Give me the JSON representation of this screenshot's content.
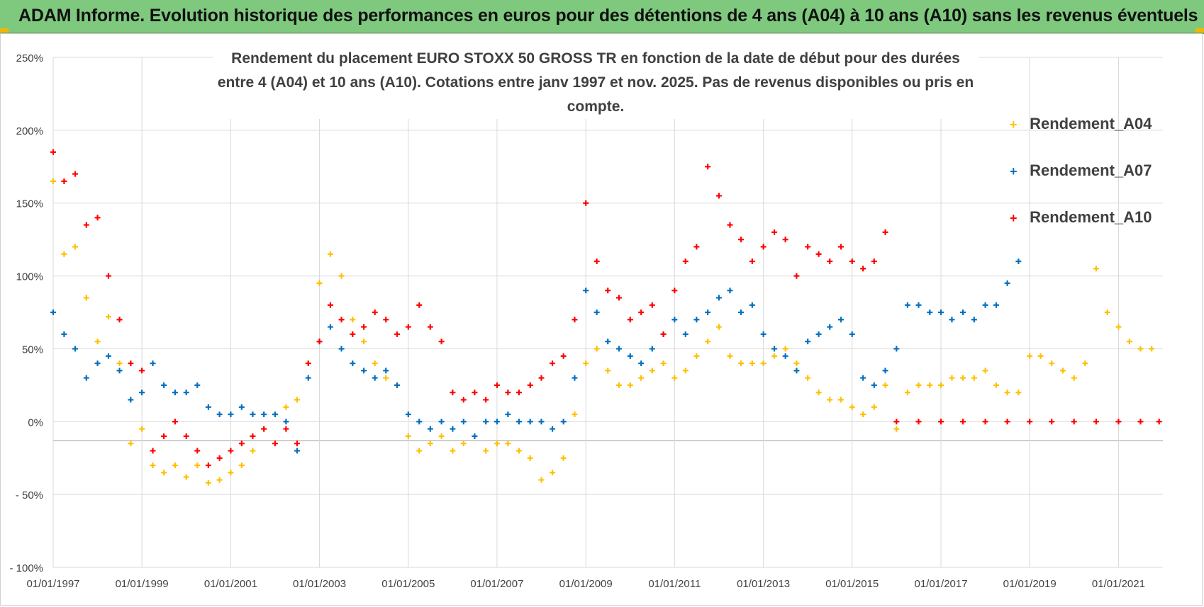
{
  "banner": {
    "title": "ADAM Informe. Evolution historique des performances en euros pour des détentions de 4 ans (A04) à 10 ans (A10) sans les revenus éventuels"
  },
  "colors": {
    "banner_bg": "#7fc97f",
    "A04": "#ffc000",
    "A07": "#0070c0",
    "A10": "#ff0000"
  },
  "chart_data": {
    "type": "scatter",
    "title_line1": "Rendement du placement EURO STOXX 50 GROSS TR en fonction de la date de début pour des durées",
    "title_line2": "entre 4 (A04) et 10 ans (A10).  Cotations entre janv 1997 et nov. 2025. Pas de revenus disponibles ou pris en compte.",
    "xlabel": "",
    "ylabel": "",
    "x_range": [
      "1997-01-01",
      "2022-01-01"
    ],
    "ylim": [
      -100,
      250
    ],
    "y_ticks": [
      250,
      200,
      150,
      100,
      50,
      0,
      -50,
      -100
    ],
    "y_tick_labels": [
      "250%",
      "200%",
      "150%",
      "100%",
      "50%",
      "0%",
      "- 50%",
      "- 100%"
    ],
    "x_tick_labels": [
      "01/01/1997",
      "01/01/1999",
      "01/01/2001",
      "01/01/2003",
      "01/01/2005",
      "01/01/2007",
      "01/01/2009",
      "01/01/2011",
      "01/01/2013",
      "01/01/2015",
      "01/01/2017",
      "01/01/2019",
      "01/01/2021"
    ],
    "grid": true,
    "legend_position": "right",
    "marker": "+",
    "series": [
      {
        "name": "Rendement_A04",
        "color": "#ffc000",
        "x": [
          "1997-01-01",
          "1997-04-01",
          "1997-07-01",
          "1997-10-01",
          "1998-01-01",
          "1998-04-01",
          "1998-07-01",
          "1998-10-01",
          "1999-01-01",
          "1999-04-01",
          "1999-07-01",
          "1999-10-01",
          "2000-01-01",
          "2000-04-01",
          "2000-07-01",
          "2000-10-01",
          "2001-01-01",
          "2001-04-01",
          "2001-07-01",
          "2001-10-01",
          "2002-01-01",
          "2002-04-01",
          "2002-07-01",
          "2002-10-01",
          "2003-01-01",
          "2003-04-01",
          "2003-07-01",
          "2003-10-01",
          "2004-01-01",
          "2004-04-01",
          "2004-07-01",
          "2004-10-01",
          "2005-01-01",
          "2005-04-01",
          "2005-07-01",
          "2005-10-01",
          "2006-01-01",
          "2006-04-01",
          "2006-07-01",
          "2006-10-01",
          "2007-01-01",
          "2007-04-01",
          "2007-07-01",
          "2007-10-01",
          "2008-01-01",
          "2008-04-01",
          "2008-07-01",
          "2008-10-01",
          "2009-01-01",
          "2009-04-01",
          "2009-07-01",
          "2009-10-01",
          "2010-01-01",
          "2010-04-01",
          "2010-07-01",
          "2010-10-01",
          "2011-01-01",
          "2011-04-01",
          "2011-07-01",
          "2011-10-01",
          "2012-01-01",
          "2012-04-01",
          "2012-07-01",
          "2012-10-01",
          "2013-01-01",
          "2013-04-01",
          "2013-07-01",
          "2013-10-01",
          "2014-01-01",
          "2014-04-01",
          "2014-07-01",
          "2014-10-01",
          "2015-01-01",
          "2015-04-01",
          "2015-07-01",
          "2015-10-01",
          "2016-01-01",
          "2016-04-01",
          "2016-07-01",
          "2016-10-01",
          "2017-01-01",
          "2017-04-01",
          "2017-07-01",
          "2017-10-01",
          "2018-01-01",
          "2018-04-01",
          "2018-07-01",
          "2018-10-01",
          "2019-01-01",
          "2019-04-01",
          "2019-07-01",
          "2019-10-01",
          "2020-01-01",
          "2020-04-01",
          "2020-07-01",
          "2020-10-01",
          "2021-01-01",
          "2021-04-01",
          "2021-07-01",
          "2021-10-01"
        ],
        "y": [
          165,
          115,
          120,
          85,
          55,
          72,
          40,
          -15,
          -5,
          -30,
          -35,
          -30,
          -38,
          -30,
          -42,
          -40,
          -35,
          -30,
          -20,
          -5,
          5,
          10,
          15,
          40,
          95,
          115,
          100,
          70,
          55,
          40,
          30,
          25,
          -10,
          -20,
          -15,
          -10,
          -20,
          -15,
          -10,
          -20,
          -15,
          -15,
          -20,
          -25,
          -40,
          -35,
          -25,
          5,
          40,
          50,
          35,
          25,
          25,
          30,
          35,
          40,
          30,
          35,
          45,
          55,
          65,
          45,
          40,
          40,
          40,
          45,
          50,
          40,
          30,
          20,
          15,
          15,
          10,
          5,
          10,
          25,
          -5,
          20,
          25,
          25,
          25,
          30,
          30,
          30,
          35,
          25,
          20,
          20,
          45,
          45,
          40,
          35,
          30,
          40,
          105,
          75,
          65,
          55,
          50,
          50
        ]
      },
      {
        "name": "Rendement_A07",
        "color": "#0070c0",
        "x": [
          "1997-01-01",
          "1997-04-01",
          "1997-07-01",
          "1997-10-01",
          "1998-01-01",
          "1998-04-01",
          "1998-07-01",
          "1998-10-01",
          "1999-01-01",
          "1999-04-01",
          "1999-07-01",
          "1999-10-01",
          "2000-01-01",
          "2000-04-01",
          "2000-07-01",
          "2000-10-01",
          "2001-01-01",
          "2001-04-01",
          "2001-07-01",
          "2001-10-01",
          "2002-01-01",
          "2002-04-01",
          "2002-07-01",
          "2002-10-01",
          "2003-01-01",
          "2003-04-01",
          "2003-07-01",
          "2003-10-01",
          "2004-01-01",
          "2004-04-01",
          "2004-07-01",
          "2004-10-01",
          "2005-01-01",
          "2005-04-01",
          "2005-07-01",
          "2005-10-01",
          "2006-01-01",
          "2006-04-01",
          "2006-07-01",
          "2006-10-01",
          "2007-01-01",
          "2007-04-01",
          "2007-07-01",
          "2007-10-01",
          "2008-01-01",
          "2008-04-01",
          "2008-07-01",
          "2008-10-01",
          "2009-01-01",
          "2009-04-01",
          "2009-07-01",
          "2009-10-01",
          "2010-01-01",
          "2010-04-01",
          "2010-07-01",
          "2010-10-01",
          "2011-01-01",
          "2011-04-01",
          "2011-07-01",
          "2011-10-01",
          "2012-01-01",
          "2012-04-01",
          "2012-07-01",
          "2012-10-01",
          "2013-01-01",
          "2013-04-01",
          "2013-07-01",
          "2013-10-01",
          "2014-01-01",
          "2014-04-01",
          "2014-07-01",
          "2014-10-01",
          "2015-01-01",
          "2015-04-01",
          "2015-07-01",
          "2015-10-01",
          "2016-01-01",
          "2016-04-01",
          "2016-07-01",
          "2016-10-01",
          "2017-01-01",
          "2017-04-01",
          "2017-07-01",
          "2017-10-01",
          "2018-01-01",
          "2018-04-01",
          "2018-07-01",
          "2018-10-01"
        ],
        "y": [
          75,
          60,
          50,
          30,
          40,
          45,
          35,
          15,
          20,
          40,
          25,
          20,
          20,
          25,
          10,
          5,
          5,
          10,
          5,
          5,
          5,
          0,
          -20,
          30,
          55,
          65,
          50,
          40,
          35,
          30,
          35,
          25,
          5,
          0,
          -5,
          0,
          -5,
          0,
          -10,
          0,
          0,
          5,
          0,
          0,
          0,
          -5,
          0,
          30,
          90,
          75,
          55,
          50,
          45,
          40,
          50,
          60,
          70,
          60,
          70,
          75,
          85,
          90,
          75,
          80,
          60,
          50,
          45,
          35,
          55,
          60,
          65,
          70,
          60,
          30,
          25,
          35,
          50,
          80,
          80,
          75,
          75,
          70,
          75,
          70,
          80,
          80,
          95,
          110
        ]
      },
      {
        "name": "Rendement_A10",
        "color": "#ff0000",
        "x": [
          "1997-01-01",
          "1997-04-01",
          "1997-07-01",
          "1997-10-01",
          "1998-01-01",
          "1998-04-01",
          "1998-07-01",
          "1998-10-01",
          "1999-01-01",
          "1999-04-01",
          "1999-07-01",
          "1999-10-01",
          "2000-01-01",
          "2000-04-01",
          "2000-07-01",
          "2000-10-01",
          "2001-01-01",
          "2001-04-01",
          "2001-07-01",
          "2001-10-01",
          "2002-01-01",
          "2002-04-01",
          "2002-07-01",
          "2002-10-01",
          "2003-01-01",
          "2003-04-01",
          "2003-07-01",
          "2003-10-01",
          "2004-01-01",
          "2004-04-01",
          "2004-07-01",
          "2004-10-01",
          "2005-01-01",
          "2005-04-01",
          "2005-07-01",
          "2005-10-01",
          "2006-01-01",
          "2006-04-01",
          "2006-07-01",
          "2006-10-01",
          "2007-01-01",
          "2007-04-01",
          "2007-07-01",
          "2007-10-01",
          "2008-01-01",
          "2008-04-01",
          "2008-07-01",
          "2008-10-01",
          "2009-01-01",
          "2009-04-01",
          "2009-07-01",
          "2009-10-01",
          "2010-01-01",
          "2010-04-01",
          "2010-07-01",
          "2010-10-01",
          "2011-01-01",
          "2011-04-01",
          "2011-07-01",
          "2011-10-01",
          "2012-01-01",
          "2012-04-01",
          "2012-07-01",
          "2012-10-01",
          "2013-01-01",
          "2013-04-01",
          "2013-07-01",
          "2013-10-01",
          "2014-01-01",
          "2014-04-01",
          "2014-07-01",
          "2014-10-01",
          "2015-01-01",
          "2015-04-01",
          "2015-07-01",
          "2015-10-01",
          "2016-01-01",
          "2016-07-01",
          "2017-01-01",
          "2017-07-01",
          "2018-01-01",
          "2018-07-01",
          "2019-01-01",
          "2019-07-01",
          "2020-01-01",
          "2020-07-01",
          "2021-01-01",
          "2021-07-01",
          "2021-12-01"
        ],
        "y": [
          185,
          165,
          170,
          135,
          140,
          100,
          70,
          40,
          35,
          -20,
          -10,
          0,
          -10,
          -20,
          -30,
          -25,
          -20,
          -15,
          -10,
          -5,
          -15,
          -5,
          -15,
          40,
          55,
          80,
          70,
          60,
          65,
          75,
          70,
          60,
          65,
          80,
          65,
          55,
          20,
          15,
          20,
          15,
          25,
          20,
          20,
          25,
          30,
          40,
          45,
          70,
          150,
          110,
          90,
          85,
          70,
          75,
          80,
          60,
          90,
          110,
          120,
          175,
          155,
          135,
          125,
          110,
          120,
          130,
          125,
          100,
          120,
          115,
          110,
          120,
          110,
          105,
          110,
          130,
          0,
          0,
          0,
          0,
          0,
          0,
          0,
          0,
          0,
          0,
          0,
          0,
          0
        ]
      }
    ]
  }
}
